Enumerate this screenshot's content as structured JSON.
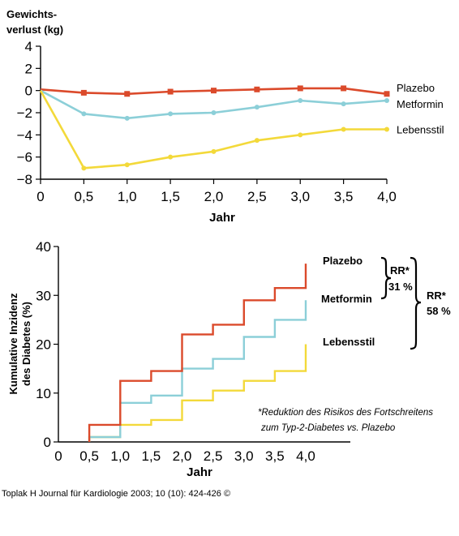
{
  "colors": {
    "plazebo": "#db4a2b",
    "metformin": "#8ccfd8",
    "lebensstil": "#f3d93a",
    "axis": "#000000"
  },
  "chart_data": [
    {
      "type": "line",
      "title": "Gewichts-verlust (kg)",
      "ylabel_lines": [
        "Gewichts-",
        "verlust (kg)"
      ],
      "xlabel": "Jahr",
      "x": [
        0,
        0.5,
        1.0,
        1.5,
        2.0,
        2.5,
        3.0,
        3.5,
        4.0
      ],
      "xticks": [
        0,
        0.5,
        1.0,
        1.5,
        2.0,
        2.5,
        3.0,
        3.5,
        4.0
      ],
      "xtick_labels": [
        "0",
        "0,5",
        "1,0",
        "1,5",
        "2,0",
        "2,5",
        "3,0",
        "3,5",
        "4,0"
      ],
      "yticks": [
        4,
        2,
        0,
        -2,
        -4,
        -6,
        -8
      ],
      "ytick_labels": [
        "4",
        "2",
        "0",
        "−2",
        "−4",
        "−6",
        "−8"
      ],
      "xlim": [
        0,
        4.0
      ],
      "ylim": [
        -8,
        4
      ],
      "grid": false,
      "legend": "right, at line ends",
      "series": [
        {
          "name": "Plazebo",
          "color": "#db4a2b",
          "marker": "square",
          "values": [
            0.1,
            -0.2,
            -0.3,
            -0.1,
            0.0,
            0.1,
            0.2,
            0.2,
            -0.3
          ]
        },
        {
          "name": "Metformin",
          "color": "#8ccfd8",
          "marker": "dot",
          "values": [
            0,
            -2.1,
            -2.5,
            -2.1,
            -2.0,
            -1.5,
            -0.9,
            -1.2,
            -0.9
          ]
        },
        {
          "name": "Lebensstil",
          "color": "#f3d93a",
          "marker": "dot",
          "values": [
            0,
            -7.0,
            -6.7,
            -6.0,
            -5.5,
            -4.5,
            -4.0,
            -3.5,
            -3.5
          ]
        }
      ]
    },
    {
      "type": "line",
      "subtype": "step",
      "ylabel_lines": [
        "Kumulative Inzidenz",
        "des Diabetes (%)"
      ],
      "xlabel": "Jahr",
      "xticks": [
        0,
        0.5,
        1.0,
        1.5,
        2.0,
        2.5,
        3.0,
        3.5,
        4.0
      ],
      "xtick_labels": [
        "0",
        "0,5",
        "1,0",
        "1,5",
        "2,0",
        "2,5",
        "3,0",
        "3,5",
        "4,0"
      ],
      "yticks": [
        0,
        10,
        20,
        30,
        40
      ],
      "ytick_labels": [
        "0",
        "10",
        "20",
        "30",
        "40"
      ],
      "xlim": [
        0,
        4.0
      ],
      "ylim": [
        0,
        40
      ],
      "grid": false,
      "legend": "right, at line ends",
      "steps_x": [
        0.5,
        1.0,
        1.5,
        2.0,
        2.5,
        3.0,
        3.5,
        4.0
      ],
      "series": [
        {
          "name": "Plazebo",
          "color": "#db4a2b",
          "values": [
            3.5,
            12.5,
            14.5,
            22.0,
            24.0,
            29.0,
            31.5,
            36.5
          ]
        },
        {
          "name": "Metformin",
          "color": "#8ccfd8",
          "values": [
            1.0,
            8.0,
            9.5,
            15.0,
            17.0,
            21.5,
            25.0,
            29.0
          ]
        },
        {
          "name": "Lebensstil",
          "color": "#f3d93a",
          "values": [
            1.0,
            3.5,
            4.5,
            8.5,
            10.5,
            12.5,
            14.5,
            20.0
          ]
        }
      ],
      "annotations": {
        "rr1_label": "RR*",
        "rr1_value": "31 %",
        "rr2_label": "RR*",
        "rr2_value": "58 %",
        "footnote_line1": "*Reduktion des Risikos des Fortschreitens",
        "footnote_line2": "zum Typ-2-Diabetes vs. Plazebo"
      }
    }
  ],
  "credit": "Toplak H Journal für Kardiologie 2003; 10 (10): 424-426 ©"
}
